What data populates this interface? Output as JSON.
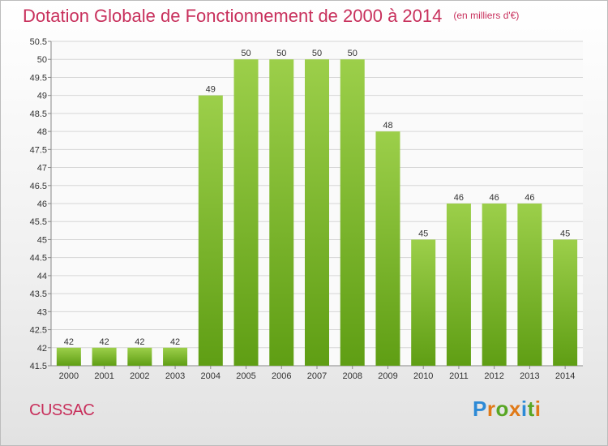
{
  "header": {
    "title": "Dotation Globale de Fonctionnement de 2000 à 2014",
    "unit": "(en milliers d'€)"
  },
  "footer": {
    "commune": "CUSSAC",
    "logo_text": "Proxiti"
  },
  "colors": {
    "title": "#c8305c",
    "bar_top": "#9ccf4a",
    "bar_bottom": "#5f9e14",
    "grid": "#d6d6d6"
  },
  "chart_data": {
    "type": "bar",
    "title": "Dotation Globale de Fonctionnement de 2000 à 2014",
    "subtitle": "(en milliers d'€)",
    "xlabel": "",
    "ylabel": "",
    "categories": [
      "2000",
      "2001",
      "2002",
      "2003",
      "2004",
      "2005",
      "2006",
      "2007",
      "2008",
      "2009",
      "2010",
      "2011",
      "2012",
      "2013",
      "2014"
    ],
    "values": [
      42,
      42,
      42,
      42,
      49,
      50,
      50,
      50,
      50,
      48,
      45,
      46,
      46,
      46,
      45
    ],
    "ylim": [
      41.5,
      50.5
    ],
    "yticks": [
      "41.5",
      "42",
      "42.5",
      "43",
      "43.5",
      "44",
      "44.5",
      "45",
      "45.5",
      "46",
      "46.5",
      "47",
      "47.5",
      "48",
      "48.5",
      "49",
      "49.5",
      "50",
      "50.5"
    ],
    "grid": true,
    "legend": "none"
  }
}
